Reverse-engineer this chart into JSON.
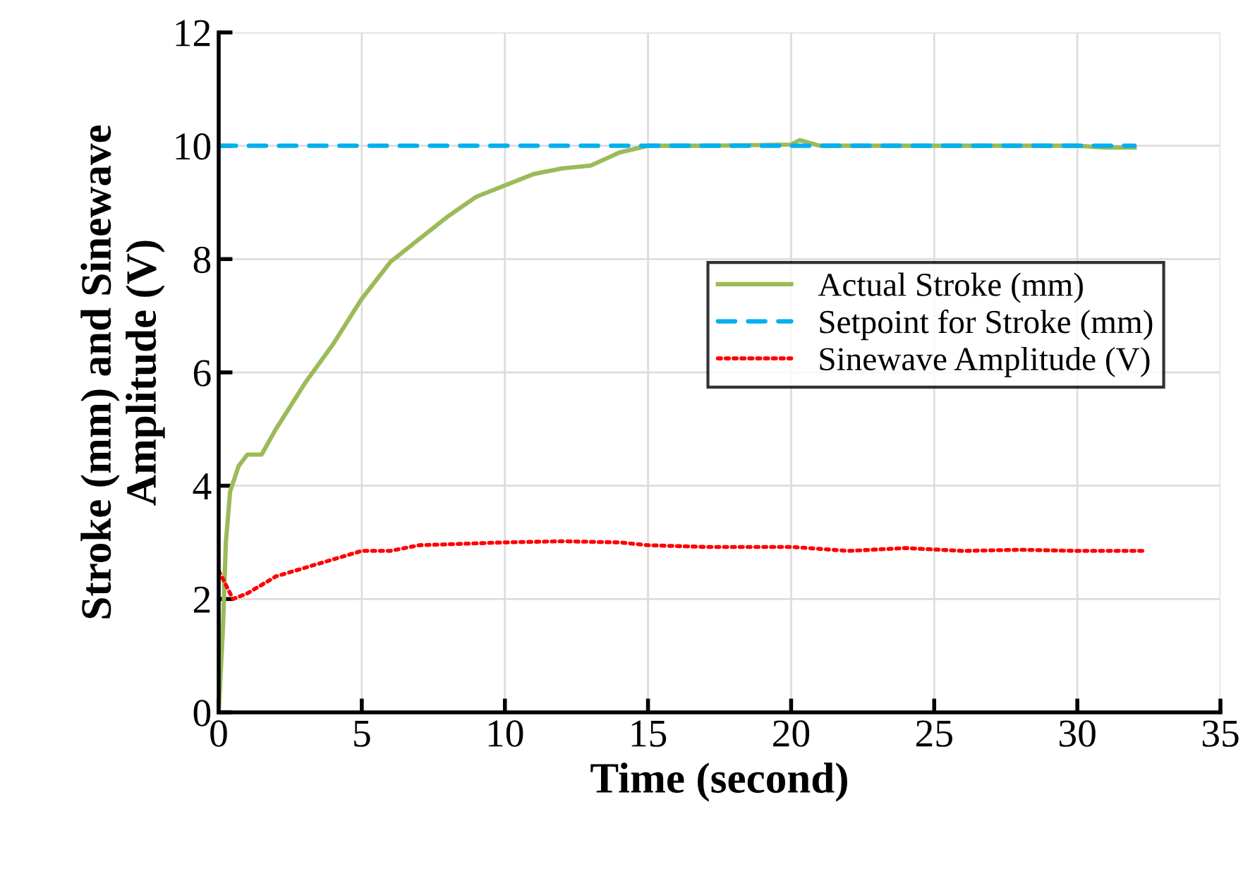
{
  "chart_data": {
    "type": "line",
    "xlabel": "Time (second)",
    "ylabel": "Stroke (mm) and Sinewave\nAmplitude (V)",
    "xlim": [
      0,
      35
    ],
    "ylim": [
      0,
      12
    ],
    "xticks": [
      0,
      5,
      10,
      15,
      20,
      25,
      30,
      35
    ],
    "yticks": [
      0,
      2,
      4,
      6,
      8,
      10,
      12
    ],
    "grid": true,
    "legend": "right",
    "series": [
      {
        "name": "Actual Stroke (mm)",
        "color": "#9bbb59",
        "line_style": "solid",
        "x": [
          0,
          0.15,
          0.25,
          0.4,
          0.7,
          1,
          1.5,
          2,
          3,
          4,
          5,
          6,
          7,
          8,
          9,
          10,
          11,
          12,
          13,
          14,
          15,
          17,
          20,
          20.3,
          21,
          25,
          30,
          31,
          32
        ],
        "values": [
          0,
          1.5,
          3,
          3.9,
          4.35,
          4.55,
          4.55,
          5.0,
          5.8,
          6.5,
          7.3,
          7.95,
          8.35,
          8.75,
          9.1,
          9.3,
          9.5,
          9.6,
          9.65,
          9.88,
          10.0,
          10.0,
          10.02,
          10.1,
          10.0,
          10.0,
          10.0,
          9.97,
          9.97
        ]
      },
      {
        "name": "Setpoint for Stroke (mm)",
        "color": "#00b0f0",
        "line_style": "dashed",
        "x": [
          0,
          32
        ],
        "values": [
          10,
          10
        ]
      },
      {
        "name": "Sinewave Amplitude (V)",
        "color": "#ff0000",
        "line_style": "dotted",
        "x": [
          0,
          0.5,
          1,
          2,
          3,
          4,
          5,
          6,
          7,
          10,
          12,
          14,
          15,
          17,
          20,
          22,
          24,
          26,
          28,
          30,
          32.3
        ],
        "values": [
          2.5,
          2.0,
          2.1,
          2.4,
          2.55,
          2.7,
          2.85,
          2.85,
          2.95,
          3.0,
          3.02,
          3.0,
          2.95,
          2.92,
          2.92,
          2.85,
          2.9,
          2.85,
          2.87,
          2.85,
          2.85
        ]
      }
    ]
  }
}
